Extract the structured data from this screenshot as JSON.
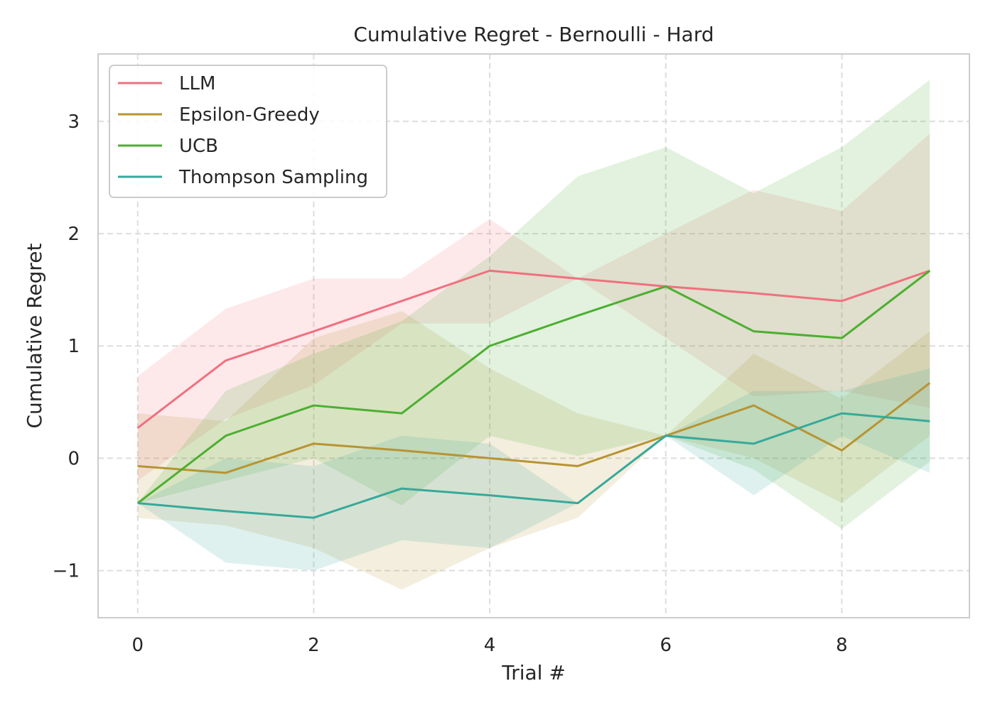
{
  "chart_data": {
    "type": "line",
    "title": "Cumulative Regret - Bernoulli - Hard",
    "xlabel": "Trial #",
    "ylabel": "Cumulative Regret",
    "xlim": [
      -0.45,
      9.45
    ],
    "ylim": [
      -1.42,
      3.6
    ],
    "xticks": [
      0,
      2,
      4,
      6,
      8
    ],
    "xtick_labels": [
      "0",
      "2",
      "4",
      "6",
      "8"
    ],
    "yticks": [
      -1,
      0,
      1,
      2,
      3
    ],
    "ytick_labels": [
      "−1",
      "0",
      "1",
      "2",
      "3"
    ],
    "grid": true,
    "grid_style": "dashed",
    "legend_position": "top-left",
    "x": [
      0,
      1,
      2,
      3,
      4,
      5,
      6,
      7,
      8,
      9
    ],
    "series": [
      {
        "name": "LLM",
        "color": "#f0707f",
        "values": [
          0.27,
          0.87,
          1.13,
          1.4,
          1.67,
          1.6,
          1.53,
          1.47,
          1.4,
          1.67
        ],
        "lower": [
          -0.2,
          0.35,
          0.65,
          1.2,
          1.2,
          1.6,
          1.07,
          0.55,
          0.6,
          0.45
        ],
        "upper": [
          0.73,
          1.33,
          1.6,
          1.6,
          2.13,
          1.6,
          2.0,
          2.39,
          2.2,
          2.89
        ]
      },
      {
        "name": "Epsilon-Greedy",
        "color": "#b79432",
        "values": [
          -0.07,
          -0.13,
          0.13,
          0.07,
          0.0,
          -0.07,
          0.2,
          0.47,
          0.07,
          0.67
        ],
        "lower": [
          -0.53,
          -0.6,
          -0.8,
          -1.17,
          -0.8,
          -0.53,
          0.2,
          0.0,
          -0.4,
          0.2
        ],
        "upper": [
          0.4,
          0.33,
          1.07,
          1.31,
          0.8,
          0.4,
          0.2,
          0.93,
          0.53,
          1.13
        ]
      },
      {
        "name": "UCB",
        "color": "#4caf30",
        "values": [
          -0.4,
          0.2,
          0.47,
          0.4,
          1.0,
          1.27,
          1.53,
          1.13,
          1.07,
          1.67
        ],
        "lower": [
          -0.4,
          -0.2,
          0.0,
          -0.42,
          0.2,
          0.02,
          0.2,
          -0.1,
          -0.63,
          -0.03
        ],
        "upper": [
          -0.4,
          0.6,
          0.93,
          1.22,
          1.8,
          2.51,
          2.77,
          2.36,
          2.77,
          3.37
        ]
      },
      {
        "name": "Thompson Sampling",
        "color": "#36a99a",
        "values": [
          -0.4,
          -0.47,
          -0.53,
          -0.27,
          -0.33,
          -0.4,
          0.2,
          0.13,
          0.4,
          0.33
        ],
        "lower": [
          -0.4,
          -0.93,
          -1.0,
          -0.73,
          -0.8,
          -0.4,
          0.2,
          -0.33,
          0.2,
          -0.13
        ],
        "upper": [
          -0.4,
          0.0,
          -0.07,
          0.2,
          0.13,
          -0.4,
          0.2,
          0.6,
          0.6,
          0.8
        ]
      }
    ]
  }
}
